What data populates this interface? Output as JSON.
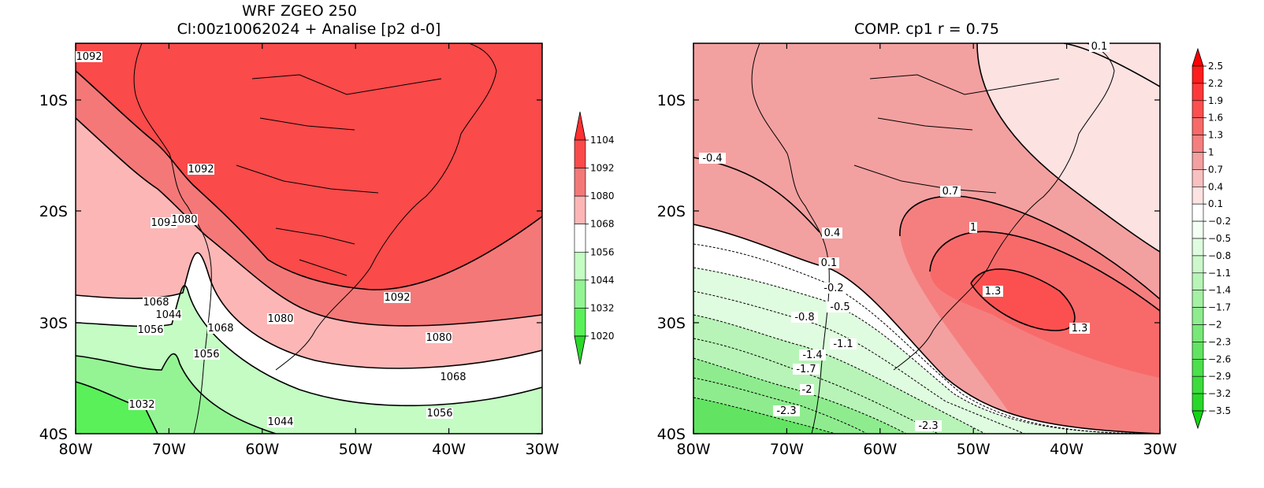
{
  "left_panel": {
    "title_line1": "WRF ZGEO 250",
    "title_line2": "Cl:00z10062024 + Analise  [p2 d-0]",
    "lat_labels": [
      "10S",
      "20S",
      "30S",
      "40S"
    ],
    "lon_labels": [
      "80W",
      "70W",
      "60W",
      "50W",
      "40W",
      "30W"
    ],
    "colorbar": {
      "labels": [
        "1104",
        "1092",
        "1080",
        "1068",
        "1056",
        "1044",
        "1032",
        "1020"
      ],
      "colors": [
        "#ff3030",
        "#fa4a4a",
        "#f47878",
        "#fcb6b6",
        "#ffffff",
        "#c4fcc4",
        "#94f494",
        "#5af05a",
        "#2ad82a"
      ]
    },
    "contour_labels": [
      "1092",
      "1092",
      "1092",
      "1080",
      "1068",
      "1044",
      "1056",
      "1068",
      "1056",
      "1080",
      "1092",
      "1080",
      "1068",
      "1056",
      "1032",
      "1044"
    ]
  },
  "right_panel": {
    "title": "COMP. cp1  r =  0.75",
    "lat_labels": [
      "10S",
      "20S",
      "30S",
      "40S"
    ],
    "lon_labels": [
      "80W",
      "70W",
      "60W",
      "50W",
      "40W",
      "30W"
    ],
    "colorbar": {
      "labels": [
        "2.5",
        "2.2",
        "1.9",
        "1.6",
        "1.3",
        "1",
        "0.7",
        "0.4",
        "0.1",
        "−0.2",
        "−0.5",
        "−0.8",
        "−1.1",
        "−1.4",
        "−1.7",
        "−2",
        "−2.3",
        "−2.6",
        "−2.9",
        "−3.2",
        "−3.5"
      ],
      "colors": [
        "#ff0000",
        "#ff1c1c",
        "#fe3838",
        "#fc5050",
        "#f86a6a",
        "#f57f7f",
        "#f3a0a0",
        "#f8c0c0",
        "#fde2e2",
        "#ffffff",
        "#f4fff4",
        "#e0fce0",
        "#ccf8cc",
        "#b8f4b8",
        "#a4f0a4",
        "#8eec8e",
        "#78e878",
        "#62e462",
        "#4ce04c",
        "#3cdc3c",
        "#28d828",
        "#14d414"
      ]
    },
    "contour_labels": [
      "0.1",
      "-0.4",
      "0.7",
      "0.4",
      "1",
      "0.1",
      "-0.2",
      "-0.5",
      "-0.8",
      "1.3",
      "1.3",
      "-1.1",
      "-1.4",
      "-1.7",
      "-2",
      "-2.3",
      "-2.3"
    ]
  }
}
